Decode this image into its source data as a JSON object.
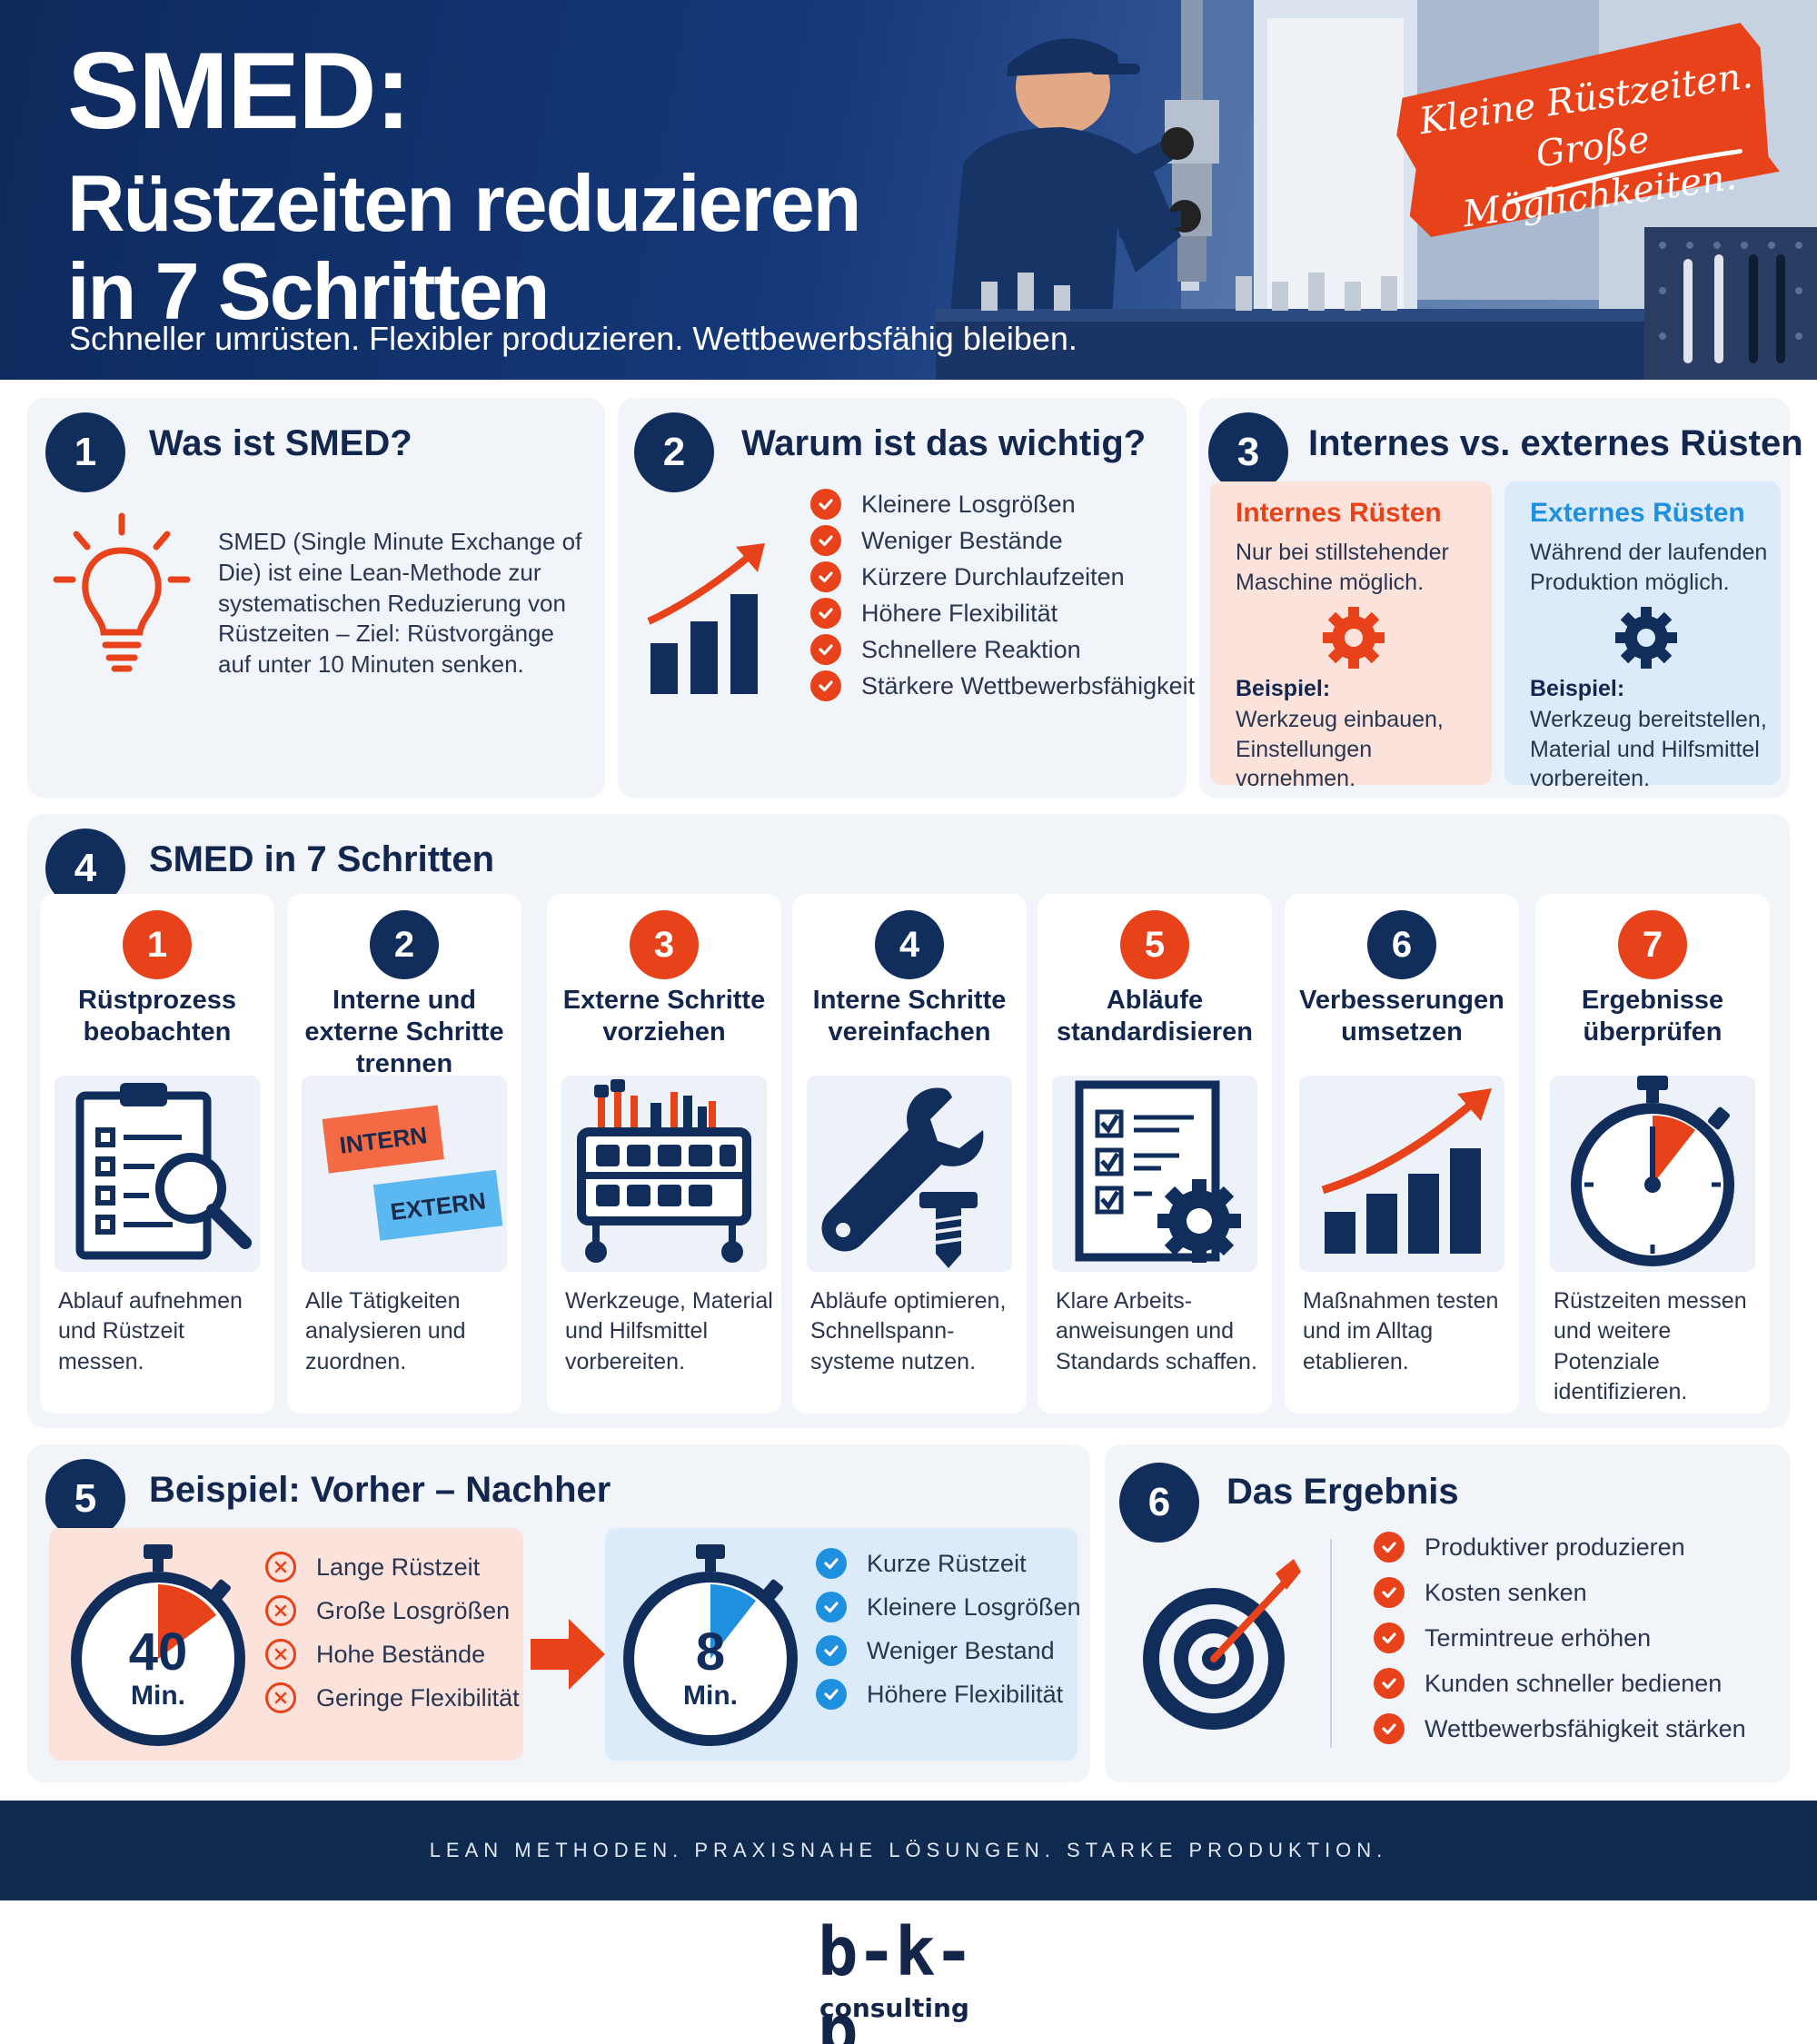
{
  "hero": {
    "title_line1": "SMED:",
    "title_line2": "Rüstzeiten reduzieren",
    "title_line3": "in 7 Schritten",
    "subtitle": "Schneller umrüsten. Flexibler produzieren. Wettbewerbsfähig bleiben.",
    "slogan_line1": "Kleine Rüstzeiten.",
    "slogan_line2": "Große Möglichkeiten."
  },
  "section1": {
    "number": "1",
    "title": "Was ist SMED?",
    "text": "SMED (Single Minute Exchange of Die) ist eine Lean-Methode zur systematischen Reduzierung von Rüstzeiten – Ziel: Rüstvorgänge auf unter 10 Minuten senken.",
    "icon": "lightbulb-icon"
  },
  "section2": {
    "number": "2",
    "title": "Warum ist das wichtig?",
    "items": [
      "Kleinere Losgrößen",
      "Weniger Bestände",
      "Kürzere Durchlaufzeiten",
      "Höhere Flexibilität",
      "Schnellere Reaktion",
      "Stärkere Wettbewerbsfähigkeit"
    ],
    "icon": "growth-chart-icon"
  },
  "section3": {
    "number": "3",
    "title": "Internes vs. externes Rüsten",
    "internal": {
      "title": "Internes Rüsten",
      "text": "Nur bei stillstehender Maschine möglich.",
      "example_label": "Beispiel:",
      "example_text": "Werkzeug einbauen, Einstellungen vornehmen."
    },
    "external": {
      "title": "Externes Rüsten",
      "text": "Während der laufenden Produktion möglich.",
      "example_label": "Beispiel:",
      "example_text": "Werkzeug bereitstellen, Material und Hilfsmittel vorbereiten."
    }
  },
  "section4": {
    "number": "4",
    "title": "SMED in 7 Schritten",
    "steps": [
      {
        "n": "1",
        "title": "Rüstprozess beobachten",
        "desc": "Ablauf aufnehmen und Rüstzeit messen.",
        "icon": "clipboard-search-icon"
      },
      {
        "n": "2",
        "title": "Interne und externe Schritte trennen",
        "desc": "Alle Tätigkeiten analysieren und zuordnen.",
        "icon": "intern-extern-icon",
        "tag_intern": "INTERN",
        "tag_extern": "EXTERN"
      },
      {
        "n": "3",
        "title": "Externe Schritte vorziehen",
        "desc": "Werkzeuge, Material und Hilfsmittel vorbereiten.",
        "icon": "tool-cart-icon"
      },
      {
        "n": "4",
        "title": "Interne Schritte vereinfachen",
        "desc": "Abläufe optimieren, Schnellspann- systeme nutzen.",
        "icon": "wrench-screw-icon"
      },
      {
        "n": "5",
        "title": "Abläufe standardisieren",
        "desc": "Klare Arbeits- anweisungen und Standards schaffen.",
        "icon": "checklist-gear-icon"
      },
      {
        "n": "6",
        "title": "Verbesserungen umsetzen",
        "desc": "Maßnahmen testen und im Alltag etablieren.",
        "icon": "growth-chart-icon"
      },
      {
        "n": "7",
        "title": "Ergebnisse überprüfen",
        "desc": "Rüstzeiten messen und weitere Potenziale identifizieren.",
        "icon": "stopwatch-icon"
      }
    ]
  },
  "section5": {
    "number": "5",
    "title": "Beispiel: Vorher – Nachher",
    "before": {
      "time": "40",
      "unit": "Min.",
      "items": [
        "Lange Rüstzeit",
        "Große Losgrößen",
        "Hohe Bestände",
        "Geringe Flexibilität"
      ]
    },
    "after": {
      "time": "8",
      "unit": "Min.",
      "items": [
        "Kurze Rüstzeit",
        "Kleinere Losgrößen",
        "Weniger Bestand",
        "Höhere Flexibilität"
      ]
    }
  },
  "section6": {
    "number": "6",
    "title": "Das Ergebnis",
    "items": [
      "Produktiver produzieren",
      "Kosten senken",
      "Termintreue erhöhen",
      "Kunden schneller bedienen",
      "Wettbewerbsfähigkeit stärken"
    ],
    "icon": "target-arrow-icon"
  },
  "footer": {
    "tagline": "LEAN METHODEN. PRAXISNAHE LÖSUNGEN. STARKE PRODUKTION.",
    "logo_main": "b-k-p",
    "logo_sub": "consulting"
  },
  "colors": {
    "navy": "#112d5c",
    "orange": "#e8421b",
    "blue": "#1f8fe0"
  }
}
